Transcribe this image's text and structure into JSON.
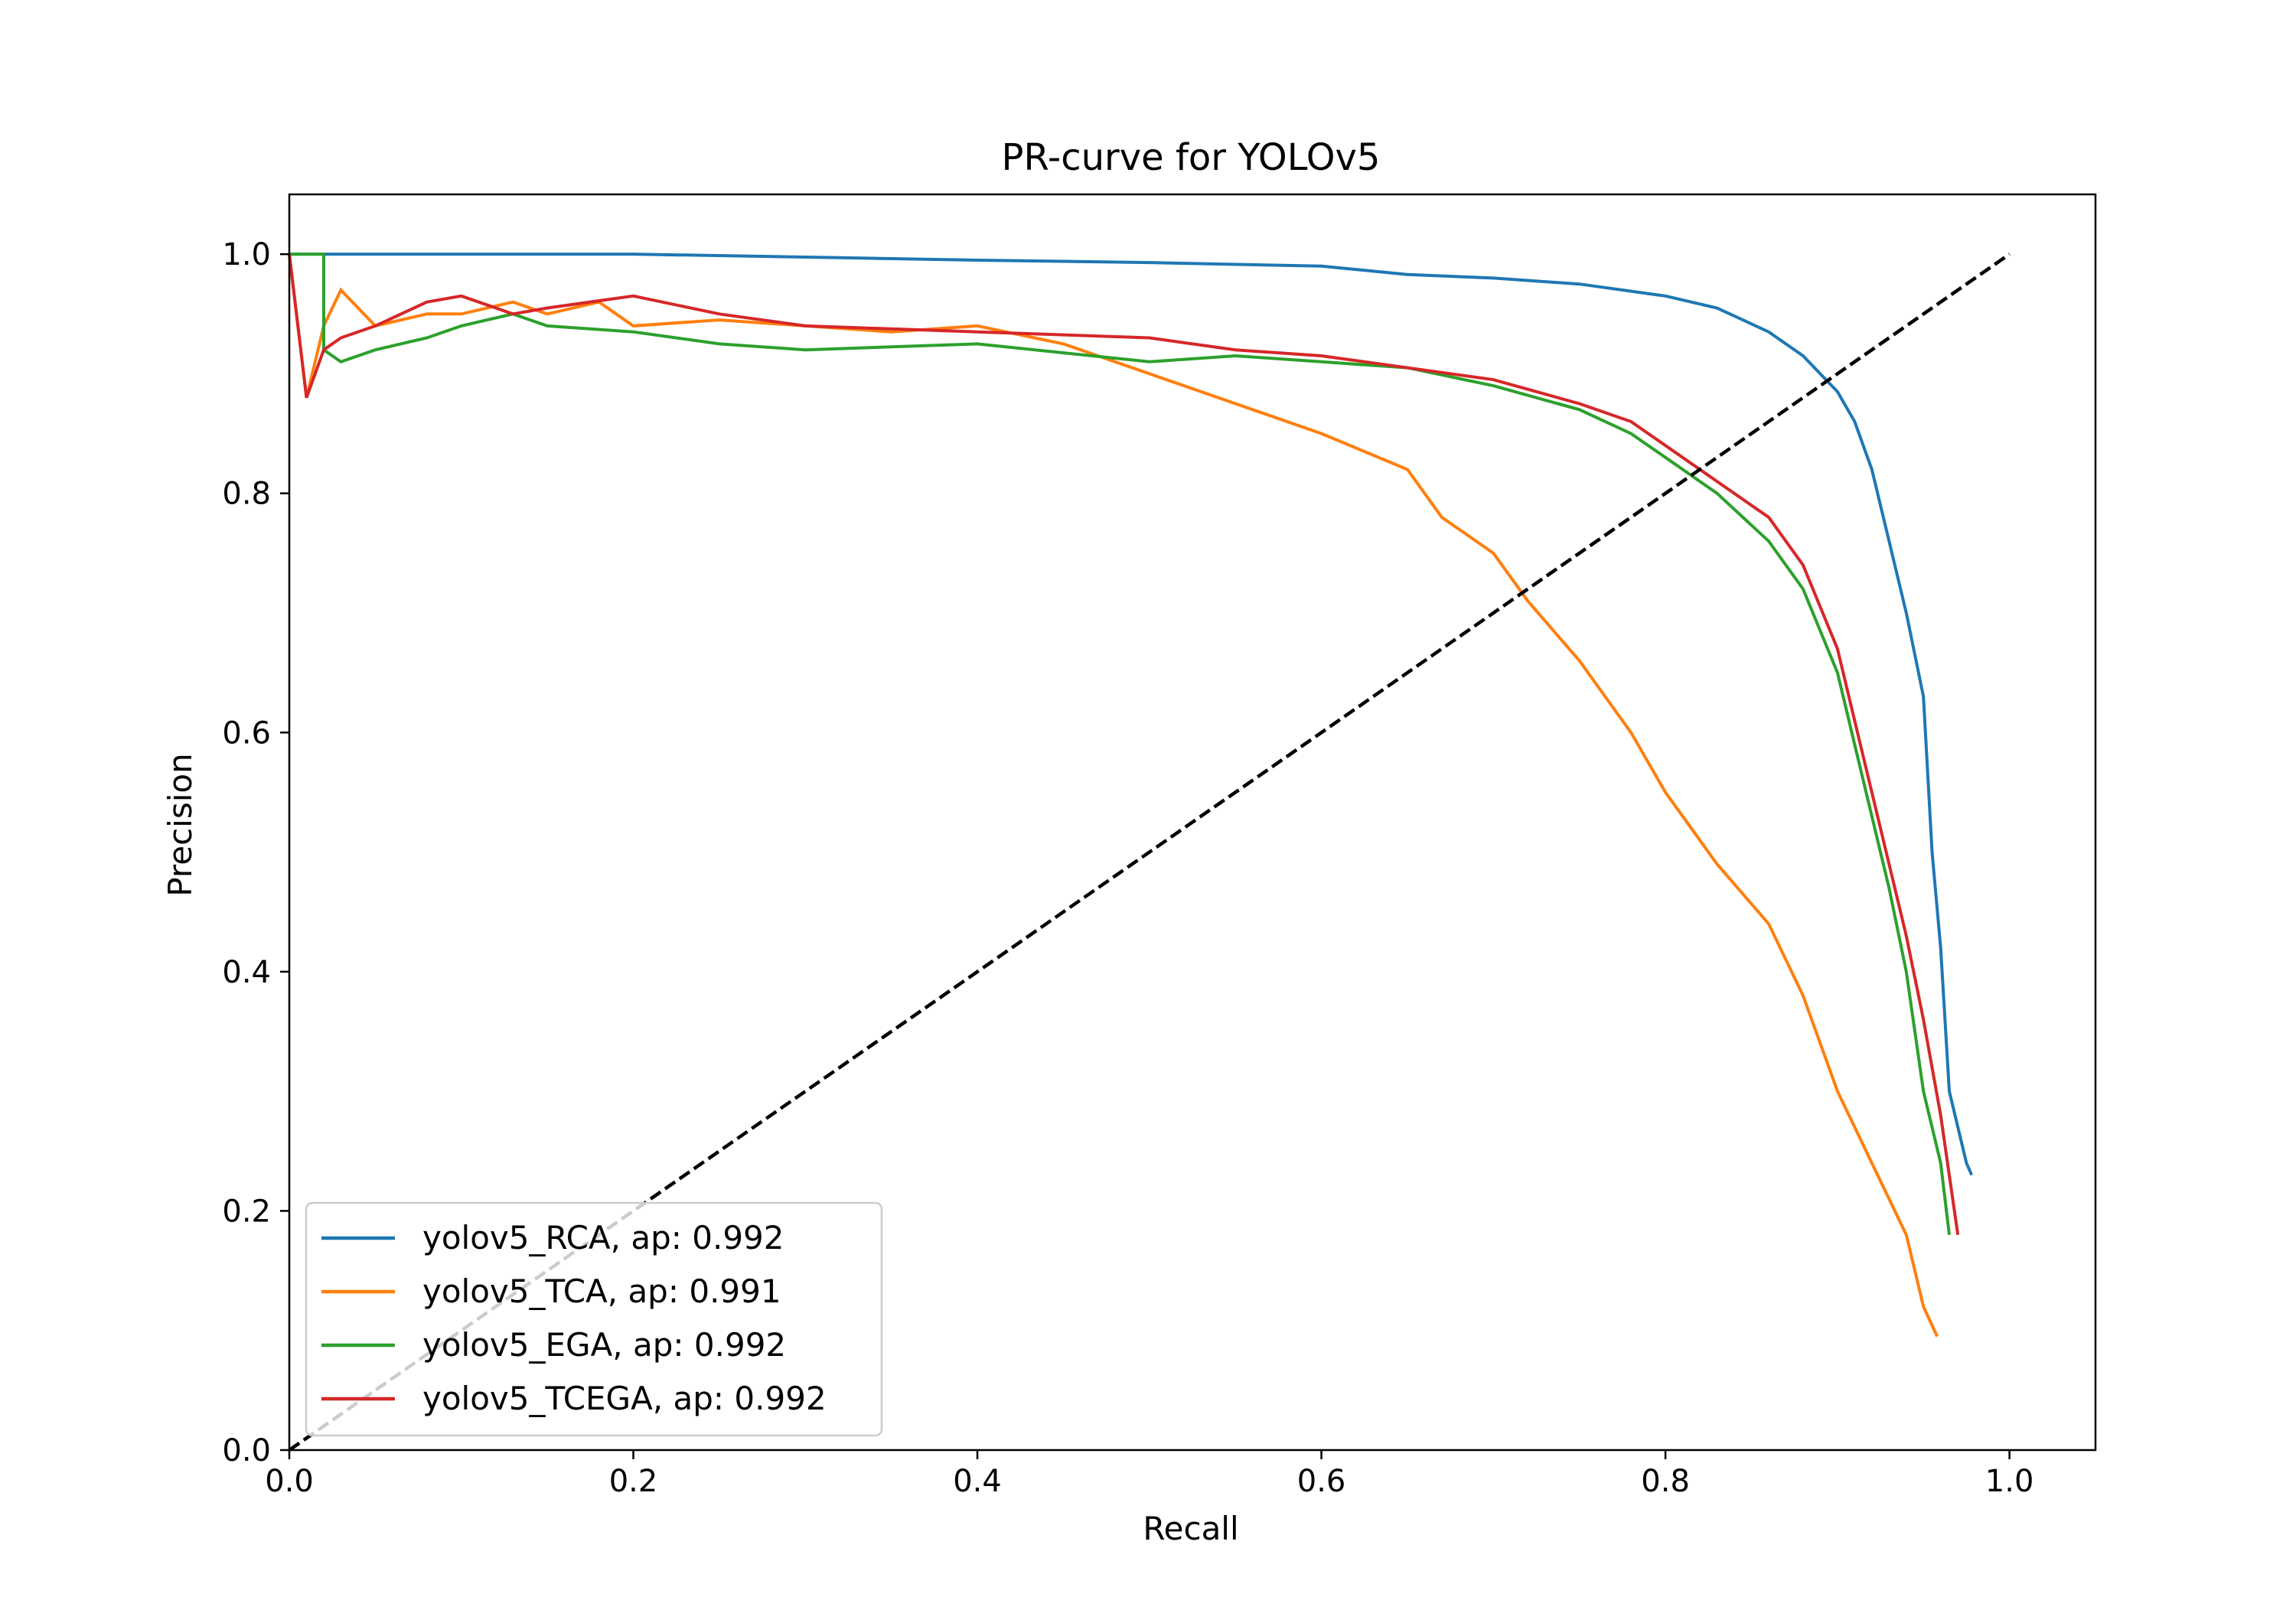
{
  "chart_data": {
    "type": "line",
    "title": "PR-curve for YOLOv5",
    "xlabel": "Recall",
    "ylabel": "Precision",
    "xlim": [
      0.0,
      1.05
    ],
    "ylim": [
      0.0,
      1.05
    ],
    "xticks": [
      0.0,
      0.2,
      0.4,
      0.6,
      0.8,
      1.0
    ],
    "xtick_labels": [
      "0.0",
      "0.2",
      "0.4",
      "0.6",
      "0.8",
      "1.0"
    ],
    "yticks": [
      0.0,
      0.2,
      0.4,
      0.6,
      0.8,
      1.0
    ],
    "ytick_labels": [
      "0.0",
      "0.2",
      "0.4",
      "0.6",
      "0.8",
      "1.0"
    ],
    "grid": false,
    "legend_position": "lower-left",
    "reference_line": {
      "x": [
        0.0,
        1.0
      ],
      "y": [
        0.0,
        1.0
      ],
      "color": "#000000",
      "style": "dashed"
    },
    "series": [
      {
        "name": "yolov5_RCA, ap: 0.992",
        "color": "#1f77b4",
        "x": [
          0.0,
          0.1,
          0.2,
          0.32,
          0.4,
          0.5,
          0.6,
          0.65,
          0.7,
          0.75,
          0.8,
          0.83,
          0.86,
          0.88,
          0.9,
          0.91,
          0.92,
          0.93,
          0.94,
          0.95,
          0.955,
          0.96,
          0.965,
          0.97,
          0.975,
          0.978
        ],
        "y": [
          1.0,
          1.0,
          1.0,
          0.997,
          0.995,
          0.993,
          0.99,
          0.983,
          0.98,
          0.975,
          0.965,
          0.955,
          0.935,
          0.915,
          0.885,
          0.86,
          0.82,
          0.76,
          0.7,
          0.63,
          0.5,
          0.42,
          0.3,
          0.27,
          0.24,
          0.23
        ]
      },
      {
        "name": "yolov5_TCA, ap: 0.991",
        "color": "#ff7f0e",
        "x": [
          0.0,
          0.01,
          0.02,
          0.03,
          0.05,
          0.08,
          0.1,
          0.13,
          0.15,
          0.18,
          0.2,
          0.25,
          0.3,
          0.35,
          0.4,
          0.45,
          0.5,
          0.55,
          0.6,
          0.65,
          0.67,
          0.7,
          0.72,
          0.75,
          0.78,
          0.8,
          0.83,
          0.86,
          0.88,
          0.9,
          0.92,
          0.94,
          0.95,
          0.958
        ],
        "y": [
          1.0,
          0.88,
          0.94,
          0.97,
          0.94,
          0.95,
          0.95,
          0.96,
          0.95,
          0.96,
          0.94,
          0.945,
          0.94,
          0.935,
          0.94,
          0.925,
          0.9,
          0.875,
          0.85,
          0.82,
          0.78,
          0.75,
          0.71,
          0.66,
          0.6,
          0.55,
          0.49,
          0.44,
          0.38,
          0.3,
          0.24,
          0.18,
          0.12,
          0.095
        ]
      },
      {
        "name": "yolov5_EGA, ap: 0.992",
        "color": "#2ca02c",
        "x": [
          0.0,
          0.02,
          0.02,
          0.03,
          0.05,
          0.08,
          0.1,
          0.13,
          0.15,
          0.2,
          0.25,
          0.3,
          0.4,
          0.5,
          0.55,
          0.6,
          0.65,
          0.7,
          0.75,
          0.78,
          0.8,
          0.83,
          0.86,
          0.88,
          0.9,
          0.91,
          0.92,
          0.93,
          0.94,
          0.95,
          0.96,
          0.965
        ],
        "y": [
          1.0,
          1.0,
          0.92,
          0.91,
          0.92,
          0.93,
          0.94,
          0.95,
          0.94,
          0.935,
          0.925,
          0.92,
          0.925,
          0.91,
          0.915,
          0.91,
          0.905,
          0.89,
          0.87,
          0.85,
          0.83,
          0.8,
          0.76,
          0.72,
          0.65,
          0.59,
          0.53,
          0.47,
          0.4,
          0.3,
          0.24,
          0.18
        ]
      },
      {
        "name": "yolov5_TCEGA, ap: 0.992",
        "color": "#d62728",
        "x": [
          0.0,
          0.01,
          0.02,
          0.03,
          0.05,
          0.08,
          0.1,
          0.13,
          0.15,
          0.2,
          0.25,
          0.3,
          0.4,
          0.5,
          0.55,
          0.6,
          0.65,
          0.7,
          0.75,
          0.78,
          0.8,
          0.83,
          0.86,
          0.88,
          0.9,
          0.91,
          0.92,
          0.93,
          0.94,
          0.95,
          0.96,
          0.97
        ],
        "y": [
          1.0,
          0.88,
          0.92,
          0.93,
          0.94,
          0.96,
          0.965,
          0.95,
          0.955,
          0.965,
          0.95,
          0.94,
          0.935,
          0.93,
          0.92,
          0.915,
          0.905,
          0.895,
          0.875,
          0.86,
          0.84,
          0.81,
          0.78,
          0.74,
          0.67,
          0.61,
          0.55,
          0.49,
          0.43,
          0.36,
          0.28,
          0.18
        ]
      }
    ]
  }
}
